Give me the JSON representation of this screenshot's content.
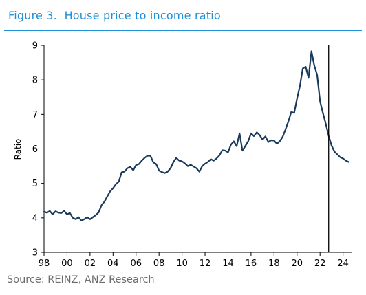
{
  "figure": {
    "title": "Figure 3.  House price to income ratio",
    "source": "Source: REINZ, ANZ Research",
    "accent_color": "#1f8fd6"
  },
  "chart_data": {
    "type": "line",
    "title": "Figure 3.  House price to income ratio",
    "xlabel": "",
    "ylabel": "Ratio",
    "xlim": [
      1998,
      2024.8
    ],
    "ylim": [
      3,
      9
    ],
    "x_ticks": [
      1998,
      2000,
      2002,
      2004,
      2006,
      2008,
      2010,
      2012,
      2014,
      2016,
      2018,
      2020,
      2022,
      2024
    ],
    "x_tick_labels": [
      "98",
      "00",
      "02",
      "04",
      "06",
      "08",
      "10",
      "12",
      "14",
      "16",
      "18",
      "20",
      "22",
      "24"
    ],
    "y_ticks": [
      3,
      4,
      5,
      6,
      7,
      8,
      9
    ],
    "y_tick_labels": [
      "3",
      "4",
      "5",
      "6",
      "7",
      "8",
      "9"
    ],
    "grid": false,
    "legend": "none",
    "line_color": "#1a3a5c",
    "marker_line": {
      "x": 2022.75,
      "color": "#000000"
    },
    "series": [
      {
        "x": [
          1998.0,
          1998.25,
          1998.5,
          1998.75,
          1999.0,
          1999.25,
          1999.5,
          1999.75,
          2000.0,
          2000.25,
          2000.5,
          2000.75,
          2001.0,
          2001.25,
          2001.5,
          2001.75,
          2002.0,
          2002.25,
          2002.5,
          2002.75,
          2003.0,
          2003.25,
          2003.5,
          2003.75,
          2004.0,
          2004.25,
          2004.5,
          2004.75,
          2005.0,
          2005.25,
          2005.5,
          2005.75,
          2006.0,
          2006.25,
          2006.5,
          2006.75,
          2007.0,
          2007.25,
          2007.5,
          2007.75,
          2008.0,
          2008.25,
          2008.5,
          2008.75,
          2009.0,
          2009.25,
          2009.5,
          2009.75,
          2010.0,
          2010.25,
          2010.5,
          2010.75,
          2011.0,
          2011.25,
          2011.5,
          2011.75,
          2012.0,
          2012.25,
          2012.5,
          2012.75,
          2013.0,
          2013.25,
          2013.5,
          2013.75,
          2014.0,
          2014.25,
          2014.5,
          2014.75,
          2015.0,
          2015.25,
          2015.5,
          2015.75,
          2016.0,
          2016.25,
          2016.5,
          2016.75,
          2017.0,
          2017.25,
          2017.5,
          2017.75,
          2018.0,
          2018.25,
          2018.5,
          2018.75,
          2019.0,
          2019.25,
          2019.5,
          2019.75,
          2020.0,
          2020.25,
          2020.5,
          2020.75,
          2021.0,
          2021.25,
          2021.5,
          2021.75,
          2022.0,
          2022.25,
          2022.5,
          2022.75,
          2023.0,
          2023.25,
          2023.5,
          2023.75,
          2024.0,
          2024.25,
          2024.5
        ],
        "values": [
          4.18,
          4.15,
          4.2,
          4.1,
          4.19,
          4.15,
          4.14,
          4.2,
          4.1,
          4.14,
          4.0,
          3.96,
          4.02,
          3.92,
          3.96,
          4.02,
          3.96,
          4.02,
          4.08,
          4.16,
          4.37,
          4.47,
          4.62,
          4.77,
          4.86,
          4.98,
          5.05,
          5.32,
          5.34,
          5.44,
          5.48,
          5.38,
          5.53,
          5.56,
          5.66,
          5.74,
          5.8,
          5.8,
          5.61,
          5.56,
          5.37,
          5.33,
          5.3,
          5.34,
          5.44,
          5.62,
          5.74,
          5.66,
          5.64,
          5.58,
          5.5,
          5.54,
          5.49,
          5.44,
          5.34,
          5.5,
          5.57,
          5.62,
          5.7,
          5.66,
          5.72,
          5.81,
          5.96,
          5.95,
          5.9,
          6.12,
          6.22,
          6.08,
          6.45,
          5.95,
          6.08,
          6.22,
          6.45,
          6.37,
          6.48,
          6.4,
          6.27,
          6.36,
          6.2,
          6.25,
          6.24,
          6.15,
          6.22,
          6.35,
          6.56,
          6.8,
          7.07,
          7.04,
          7.46,
          7.82,
          8.33,
          8.38,
          8.06,
          8.83,
          8.42,
          8.14,
          7.38,
          7.04,
          6.72,
          6.38,
          6.1,
          5.92,
          5.84,
          5.76,
          5.72,
          5.66,
          5.62
        ]
      }
    ]
  }
}
